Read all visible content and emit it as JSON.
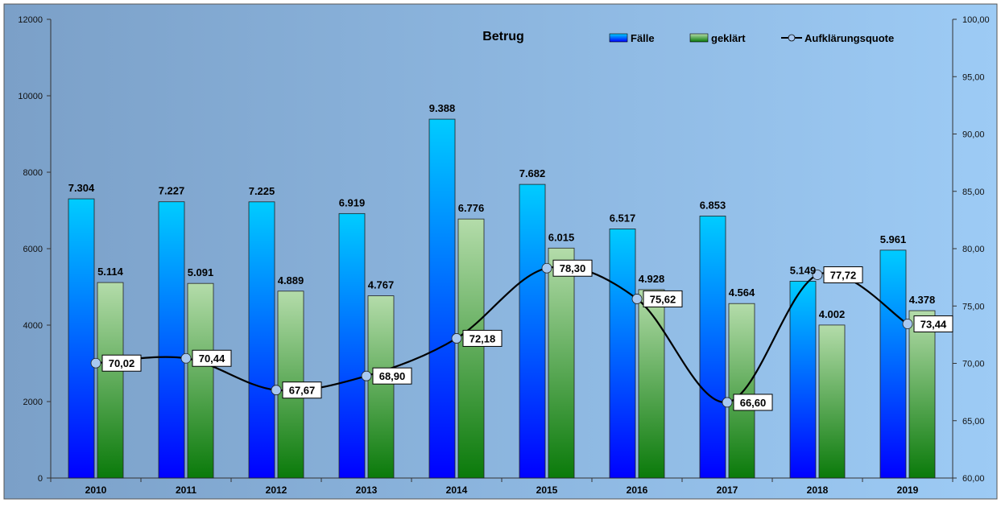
{
  "chart_data": {
    "type": "bar",
    "title": "Betrug",
    "categories": [
      "2010",
      "2011",
      "2012",
      "2013",
      "2014",
      "2015",
      "2016",
      "2017",
      "2018",
      "2019"
    ],
    "series": [
      {
        "name": "Fälle",
        "type": "bar",
        "axis": "left",
        "values": [
          7304,
          7227,
          7225,
          6919,
          9388,
          7682,
          6517,
          6853,
          5149,
          5961
        ],
        "labels": [
          "7.304",
          "7.227",
          "7.225",
          "6.919",
          "9.388",
          "7.682",
          "6.517",
          "6.853",
          "5.149",
          "5.961"
        ]
      },
      {
        "name": "geklärt",
        "type": "bar",
        "axis": "left",
        "values": [
          5114,
          5091,
          4889,
          4767,
          6776,
          6015,
          4928,
          4564,
          4002,
          4378
        ],
        "labels": [
          "5.114",
          "5.091",
          "4.889",
          "4.767",
          "6.776",
          "6.015",
          "4.928",
          "4.564",
          "4.002",
          "4.378"
        ]
      },
      {
        "name": "Aufklärungsquote",
        "type": "line",
        "axis": "right",
        "values": [
          70.02,
          70.44,
          67.67,
          68.9,
          72.18,
          78.3,
          75.62,
          66.6,
          77.72,
          73.44
        ],
        "labels": [
          "70,02",
          "70,44",
          "67,67",
          "68,90",
          "72,18",
          "78,30",
          "75,62",
          "66,60",
          "77,72",
          "73,44"
        ]
      }
    ],
    "y_left": {
      "ylim": [
        0,
        12000
      ],
      "ticks": [
        "0",
        "2000",
        "4000",
        "6000",
        "8000",
        "10000",
        "12000"
      ]
    },
    "y_right": {
      "ylim": [
        60,
        100
      ],
      "ticks": [
        "60,00",
        "65,00",
        "70,00",
        "75,00",
        "80,00",
        "85,00",
        "90,00",
        "95,00",
        "100,00"
      ]
    },
    "grid": false,
    "legend_position": "top-right",
    "colors": {
      "faelle_top": "#00ccff",
      "faelle_bottom": "#0000ff",
      "geklaert_top": "#b4dcaa",
      "geklaert_bottom": "#0a7a0a",
      "line": "#000000",
      "marker_fill": "#a8c8f0",
      "background_left": "#7ba0c8",
      "background_right": "#9dcbf5"
    }
  }
}
